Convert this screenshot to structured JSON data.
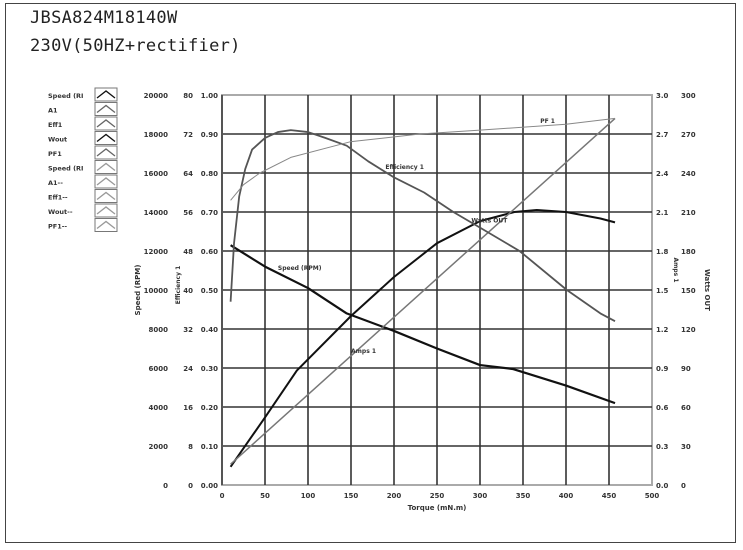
{
  "title_line1": "JBSA824M18140W",
  "title_line2": "230V(50HZ+rectifier)",
  "chart_data": {
    "type": "line",
    "xlabel": "Torque (mN.m)",
    "xlim": [
      0,
      500
    ],
    "xticks": [
      0,
      50,
      100,
      150,
      200,
      250,
      300,
      350,
      400,
      450,
      500
    ],
    "grid": true,
    "legend_position": "left",
    "legend": [
      "Speed (RI",
      "A1",
      "Eff1",
      "Wout",
      "PF1",
      "Speed (RI",
      "A1--",
      "Eff1--",
      "Wout--",
      "PF1--"
    ],
    "axes": {
      "speed": {
        "label": "Speed (RPM)",
        "lim": [
          0,
          20000
        ],
        "ticks": [
          0,
          2000,
          4000,
          6000,
          8000,
          10000,
          12000,
          14000,
          16000,
          18000,
          20000
        ]
      },
      "a1": {
        "label": "",
        "lim": [
          0,
          80
        ],
        "ticks": [
          0,
          8,
          16,
          24,
          32,
          40,
          48,
          56,
          64,
          72,
          80
        ]
      },
      "efficiency": {
        "label": "Efficiency 1",
        "lim": [
          0,
          1
        ],
        "ticks": [
          "0.00",
          "0.10",
          "0.20",
          "0.30",
          "0.40",
          "0.50",
          "0.60",
          "0.70",
          "0.80",
          "0.90",
          "1.00"
        ]
      },
      "amps": {
        "label": "Amps 1",
        "lim": [
          0,
          3
        ],
        "ticks": [
          "0.0",
          "0.3",
          "0.6",
          "0.9",
          "1.2",
          "1.5",
          "1.8",
          "2.1",
          "2.4",
          "2.7",
          "3.0"
        ]
      },
      "watts": {
        "label": "Watts OUT",
        "lim": [
          0,
          300
        ],
        "ticks": [
          0,
          30,
          60,
          90,
          120,
          150,
          180,
          210,
          240,
          270,
          300
        ]
      }
    },
    "series": [
      {
        "name": "Speed (RPM)",
        "axis": "speed",
        "color": "#111111",
        "width": 2.2,
        "x": [
          10,
          50,
          100,
          145,
          200,
          250,
          300,
          338,
          400,
          457
        ],
        "y": [
          12300,
          11200,
          10100,
          8800,
          7900,
          7000,
          6150,
          5950,
          5100,
          4200
        ]
      },
      {
        "name": "Watts OUT",
        "axis": "watts",
        "color": "#111111",
        "width": 2,
        "x": [
          10,
          50,
          87,
          150,
          200,
          250,
          300,
          340,
          366,
          400,
          440,
          457
        ],
        "y": [
          14,
          52,
          88,
          130,
          160,
          186,
          203,
          210,
          211.5,
          210,
          205,
          202
        ]
      },
      {
        "name": "Amps 1",
        "axis": "amps",
        "color": "#777777",
        "width": 1.5,
        "x": [
          10,
          131,
          457
        ],
        "y": [
          0.16,
          0.88,
          2.82
        ]
      },
      {
        "name": "Efficiency 1",
        "axis": "efficiency",
        "color": "#555555",
        "width": 1.8,
        "x": [
          10,
          14,
          20,
          27,
          35,
          50,
          65,
          80,
          100,
          120,
          145,
          170,
          199,
          235,
          269,
          300,
          346,
          401,
          440,
          457
        ],
        "y": [
          0.47,
          0.62,
          0.74,
          0.81,
          0.86,
          0.89,
          0.905,
          0.91,
          0.905,
          0.89,
          0.87,
          0.83,
          0.79,
          0.75,
          0.7,
          0.66,
          0.6,
          0.5,
          0.44,
          0.42
        ]
      },
      {
        "name": "PF 1",
        "axis": "efficiency",
        "color": "#888888",
        "width": 1,
        "x": [
          10,
          25,
          44,
          80,
          149,
          230,
          300,
          400,
          457
        ],
        "y": [
          0.73,
          0.77,
          0.8,
          0.84,
          0.88,
          0.9,
          0.91,
          0.925,
          0.94
        ]
      }
    ],
    "annotations": [
      {
        "text": "PF 1",
        "x": 370,
        "series": "PF 1"
      },
      {
        "text": "Efficiency 1",
        "x": 190,
        "series": "Efficiency 1"
      },
      {
        "text": "Watts OUT",
        "x": 290,
        "series": "Watts OUT"
      },
      {
        "text": "Speed (RPM)",
        "x": 65,
        "series": "Speed (RPM)"
      },
      {
        "text": "Amps 1",
        "x": 150,
        "series": "Amps 1"
      }
    ]
  }
}
